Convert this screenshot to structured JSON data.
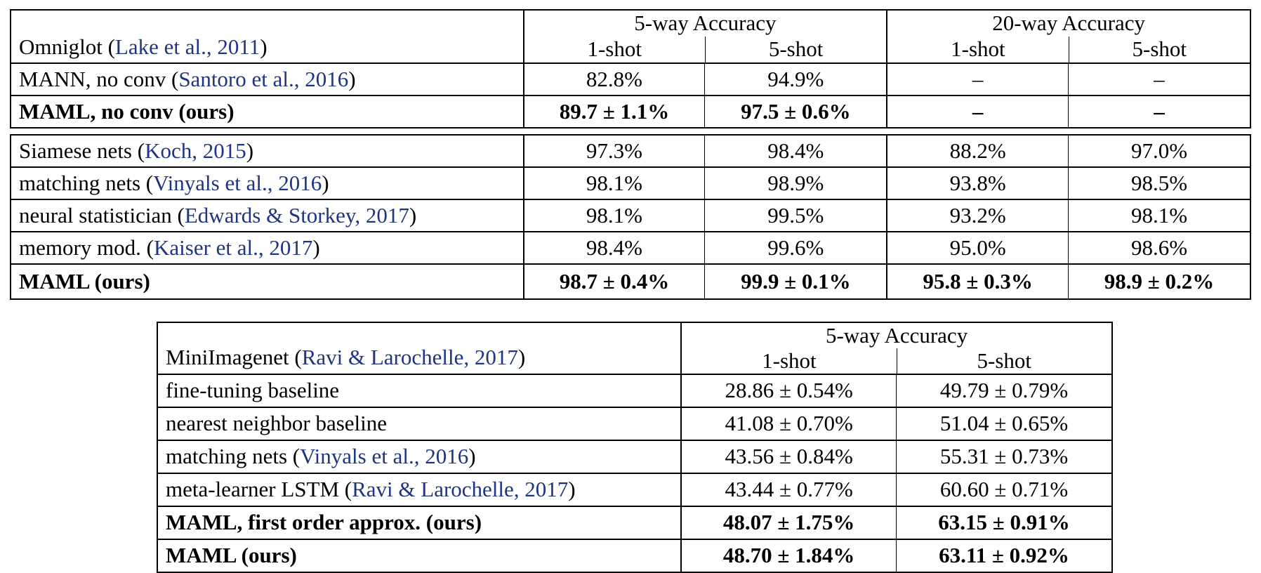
{
  "accent_link_color": "#1f3483",
  "omniglot": {
    "dataset": {
      "name": "Omniglot (",
      "cite": "Lake et al., 2011",
      "close": ")"
    },
    "groups": [
      "5-way Accuracy",
      "20-way Accuracy"
    ],
    "shots": [
      "1-shot",
      "5-shot",
      "1-shot",
      "5-shot"
    ],
    "block1": [
      {
        "name": "MANN, no conv (",
        "cite": "Santoro et al., 2016",
        "close": ")",
        "values": [
          "82.8%",
          "94.9%",
          "–",
          "–"
        ]
      },
      {
        "name": "MAML, no conv (ours)",
        "cite": "",
        "close": "",
        "values": [
          "89.7 ± 1.1%",
          "97.5 ± 0.6%",
          "–",
          "–"
        ]
      }
    ],
    "block2": [
      {
        "name": "Siamese nets (",
        "cite": "Koch, 2015",
        "close": ")",
        "values": [
          "97.3%",
          "98.4%",
          "88.2%",
          "97.0%"
        ]
      },
      {
        "name": "matching nets (",
        "cite": "Vinyals et al., 2016",
        "close": ")",
        "values": [
          "98.1%",
          "98.9%",
          "93.8%",
          "98.5%"
        ]
      },
      {
        "name": "neural statistician (",
        "cite": "Edwards & Storkey, 2017",
        "close": ")",
        "values": [
          "98.1%",
          "99.5%",
          "93.2%",
          "98.1%"
        ]
      },
      {
        "name": "memory mod. (",
        "cite": "Kaiser et al., 2017",
        "close": ")",
        "values": [
          "98.4%",
          "99.6%",
          "95.0%",
          "98.6%"
        ]
      },
      {
        "name": "MAML (ours)",
        "cite": "",
        "close": "",
        "values": [
          "98.7 ± 0.4%",
          "99.9 ± 0.1%",
          "95.8 ± 0.3%",
          "98.9 ± 0.2%"
        ]
      }
    ]
  },
  "mini": {
    "dataset": {
      "name": "MiniImagenet (",
      "cite": "Ravi & Larochelle, 2017",
      "close": ")"
    },
    "group": "5-way Accuracy",
    "shots": [
      "1-shot",
      "5-shot"
    ],
    "rows": [
      {
        "name": "fine-tuning baseline",
        "cite": "",
        "close": "",
        "values": [
          "28.86 ± 0.54%",
          "49.79 ± 0.79%"
        ]
      },
      {
        "name": "nearest neighbor baseline",
        "cite": "",
        "close": "",
        "values": [
          "41.08 ± 0.70%",
          "51.04 ± 0.65%"
        ]
      },
      {
        "name": "matching nets (",
        "cite": "Vinyals et al., 2016",
        "close": ")",
        "values": [
          "43.56 ± 0.84%",
          "55.31 ± 0.73%"
        ]
      },
      {
        "name": "meta-learner LSTM (",
        "cite": "Ravi & Larochelle, 2017",
        "close": ")",
        "values": [
          "43.44 ± 0.77%",
          "60.60 ± 0.71%"
        ]
      },
      {
        "name": "MAML, first order approx. (ours)",
        "cite": "",
        "close": "",
        "values": [
          "48.07 ± 1.75%",
          "63.15 ± 0.91%"
        ]
      },
      {
        "name": "MAML (ours)",
        "cite": "",
        "close": "",
        "values": [
          "48.70 ± 1.84%",
          "63.11 ± 0.92%"
        ]
      }
    ]
  }
}
